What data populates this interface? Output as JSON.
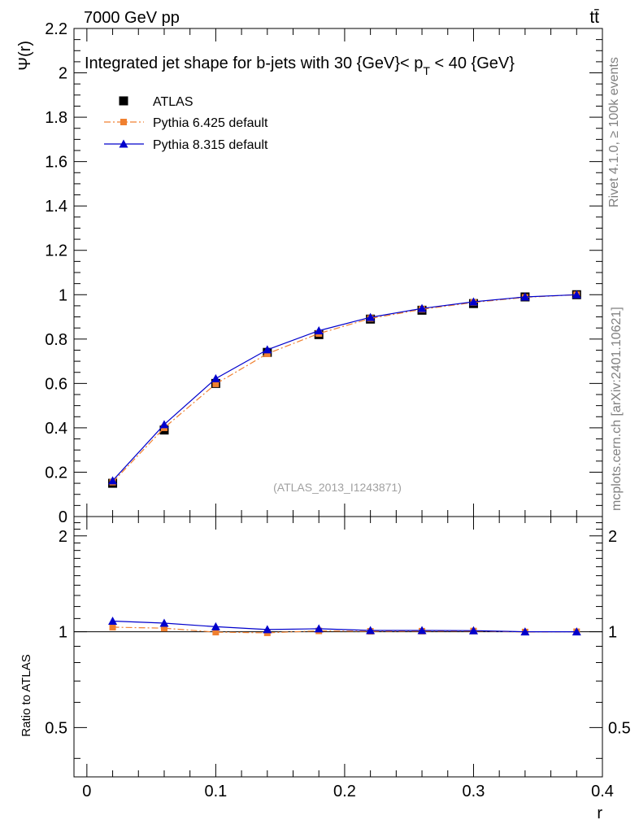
{
  "header": {
    "energy_label": "7000 GeV pp",
    "process_label": "tt̄"
  },
  "side_text": {
    "rivet": "Rivet 4.1.0, ≥ 100k events",
    "mcplots": "mcplots.cern.ch [arXiv:2401.10621]"
  },
  "chart_data": [
    {
      "type": "line",
      "title_prefix": "Integrated jet shape for b-jets with 30 {GeV}< p",
      "title_sub": "T",
      "title_suffix": " < 40 {GeV}",
      "ylabel": "Ψ(r)",
      "xlabel": "",
      "watermark": "(ATLAS_2013_I1243871)",
      "xlim": [
        -0.01,
        0.4
      ],
      "ylim": [
        0,
        2.2
      ],
      "yticks": [
        0,
        0.2,
        0.4,
        0.6,
        0.8,
        1,
        1.2,
        1.4,
        1.6,
        1.8,
        2,
        2.2
      ],
      "ytick_labels": [
        "0",
        "0.2",
        "0.4",
        "0.6",
        "0.8",
        "1",
        "1.2",
        "1.4",
        "1.6",
        "1.8",
        "2",
        "2.2"
      ],
      "x": [
        0.02,
        0.06,
        0.1,
        0.14,
        0.18,
        0.22,
        0.26,
        0.3,
        0.34,
        0.38
      ],
      "series": [
        {
          "name": "ATLAS",
          "color": "#000000",
          "marker": "square",
          "values": [
            0.15,
            0.39,
            0.6,
            0.74,
            0.82,
            0.89,
            0.93,
            0.96,
            0.99,
            1.0
          ]
        },
        {
          "name": "Pythia 6.425 default",
          "color": "#f08030",
          "marker": "square",
          "values": [
            0.155,
            0.4,
            0.598,
            0.734,
            0.825,
            0.893,
            0.934,
            0.965,
            0.988,
            1.0
          ]
        },
        {
          "name": "Pythia 8.315 default",
          "color": "#0000cc",
          "marker": "triangle",
          "values": [
            0.162,
            0.415,
            0.622,
            0.752,
            0.838,
            0.898,
            0.938,
            0.968,
            0.99,
            1.0
          ]
        }
      ]
    },
    {
      "type": "line",
      "ylabel": "Ratio to ATLAS",
      "xlabel": "r",
      "xlim": [
        -0.01,
        0.4
      ],
      "ylim": [
        0.35,
        2.3
      ],
      "scale": "log",
      "yticks": [
        0.5,
        1,
        2
      ],
      "ytick_labels": [
        "0.5",
        "1",
        "2"
      ],
      "xticks": [
        0,
        0.1,
        0.2,
        0.3,
        0.4
      ],
      "xtick_labels": [
        "0",
        "0.1",
        "0.2",
        "0.3",
        "0.4"
      ],
      "x": [
        0.02,
        0.06,
        0.1,
        0.14,
        0.18,
        0.22,
        0.26,
        0.3,
        0.34,
        0.38
      ],
      "series": [
        {
          "name": "Pythia 6.425 default",
          "color": "#f08030",
          "marker": "square",
          "values": [
            1.033,
            1.026,
            0.997,
            0.992,
            1.006,
            1.003,
            1.004,
            1.005,
            0.998,
            1.0
          ]
        },
        {
          "name": "Pythia 8.315 default",
          "color": "#0000cc",
          "marker": "triangle",
          "values": [
            1.08,
            1.064,
            1.037,
            1.016,
            1.022,
            1.009,
            1.009,
            1.008,
            1.0,
            1.0
          ]
        }
      ]
    }
  ]
}
